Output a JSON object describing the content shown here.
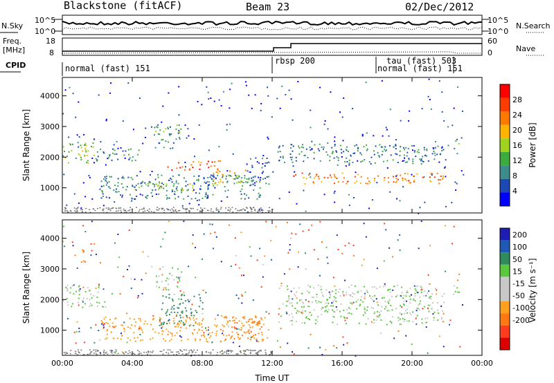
{
  "header": {
    "station": "Blackstone (fitACF)",
    "beam": "Beam 23",
    "date": "02/Dec/2012"
  },
  "noise_panel": {
    "left_label": "N.Sky",
    "left_ticks": [
      "10^5",
      "10^0"
    ],
    "right_ticks": [
      "10^5",
      "10^0"
    ],
    "right_label": "N.Search"
  },
  "freq_panel": {
    "left_label_1": "Freq.",
    "left_label_2": "[MHz]",
    "left_ticks": [
      "18",
      "8"
    ],
    "right_ticks": [
      "60",
      "0"
    ],
    "right_label": "Nave"
  },
  "cpid": {
    "label": "CPID",
    "modes": [
      {
        "name": "normal (fast) 151",
        "start_hour": 0
      },
      {
        "name": "rbsp 200",
        "start_hour": 12
      },
      {
        "name": "tau (fast) 503",
        "start_hour": 18
      },
      {
        "name": "normal (fast) 151",
        "start_hour": 18
      }
    ]
  },
  "colors": {
    "power": [
      "#0000ff",
      "#1e48b4",
      "#3c8c8c",
      "#3caa3c",
      "#a0d21e",
      "#ffb400",
      "#ff7800",
      "#ff3c00",
      "#ff0000"
    ],
    "velocity": [
      "#1e1eb4",
      "#1e5ab4",
      "#2d8c5a",
      "#5ac83c",
      "#c8c8c8",
      "#c8c8c8",
      "#ffa01e",
      "#ff7814",
      "#ff3c1e",
      "#dc0000"
    ]
  },
  "chart_data": [
    {
      "type": "heatmap",
      "title": "",
      "xlabel": "Time UT",
      "ylabel": "Slant Range [km]",
      "xlim": [
        0,
        24
      ],
      "ylim": [
        180,
        4600
      ],
      "x_ticks": [
        "00:00",
        "04:00",
        "08:00",
        "12:00",
        "16:00",
        "20:00",
        "00:00"
      ],
      "y_ticks": [
        1000,
        2000,
        3000,
        4000
      ],
      "colorbar": {
        "label": "Power [dB]",
        "ticks": [
          "4",
          "8",
          "12",
          "16",
          "20",
          "24",
          "28"
        ],
        "range": [
          0,
          30
        ]
      },
      "echo_regions": [
        {
          "t0": 0.0,
          "t1": 1.8,
          "r0": 1750,
          "r1": 2500,
          "level": 14
        },
        {
          "t0": 1.8,
          "t1": 4.5,
          "r0": 1900,
          "r1": 2300,
          "level": 8
        },
        {
          "t0": 2.2,
          "t1": 11.8,
          "r0": 650,
          "r1": 1450,
          "level": 8
        },
        {
          "t0": 4.0,
          "t1": 7.5,
          "r0": 900,
          "r1": 1200,
          "level": 14
        },
        {
          "t0": 5.2,
          "t1": 6.8,
          "r0": 2300,
          "r1": 3100,
          "level": 10
        },
        {
          "t0": 6.0,
          "t1": 9.0,
          "r0": 1600,
          "r1": 1900,
          "level": 24
        },
        {
          "t0": 8.5,
          "t1": 10.5,
          "r0": 1100,
          "r1": 1600,
          "level": 18
        },
        {
          "t0": 10.5,
          "t1": 11.8,
          "r0": 1100,
          "r1": 2000,
          "level": 6
        },
        {
          "t0": 12.3,
          "t1": 21.8,
          "r0": 1800,
          "r1": 2450,
          "level": 8
        },
        {
          "t0": 13.0,
          "t1": 21.8,
          "r0": 1150,
          "r1": 1500,
          "level": 22
        },
        {
          "t0": 22.3,
          "t1": 22.7,
          "r0": 2100,
          "r1": 2600,
          "level": 10
        }
      ]
    },
    {
      "type": "heatmap",
      "title": "",
      "xlabel": "Time UT",
      "ylabel": "Slant Range [km]",
      "xlim": [
        0,
        24
      ],
      "ylim": [
        180,
        4600
      ],
      "x_ticks": [
        "00:00",
        "04:00",
        "08:00",
        "12:00",
        "16:00",
        "20:00",
        "00:00"
      ],
      "y_ticks": [
        1000,
        2000,
        3000,
        4000
      ],
      "colorbar": {
        "label": "Velocity [m s⁻¹]",
        "ticks": [
          "200",
          "100",
          "50",
          "15",
          "-15",
          "-50",
          "-100",
          "-200"
        ],
        "range": [
          -250,
          250
        ]
      },
      "echo_regions": [
        {
          "t0": 0.0,
          "t1": 2.5,
          "r0": 1750,
          "r1": 2500,
          "level": 0
        },
        {
          "t0": 0.9,
          "t1": 1.3,
          "r0": 3200,
          "r1": 3700,
          "level": -120
        },
        {
          "t0": 2.2,
          "t1": 11.8,
          "r0": 650,
          "r1": 1450,
          "level": -60
        },
        {
          "t0": 5.5,
          "t1": 8.0,
          "r0": 1150,
          "r1": 2200,
          "level": 60
        },
        {
          "t0": 5.3,
          "t1": 6.8,
          "r0": 2300,
          "r1": 3100,
          "level": 0
        },
        {
          "t0": 9.0,
          "t1": 11.5,
          "r0": 700,
          "r1": 1500,
          "level": -80
        },
        {
          "t0": 12.3,
          "t1": 21.8,
          "r0": 1200,
          "r1": 2500,
          "level": 0
        },
        {
          "t0": 22.3,
          "t1": 22.7,
          "r0": 2100,
          "r1": 2600,
          "level": 0
        }
      ]
    }
  ]
}
